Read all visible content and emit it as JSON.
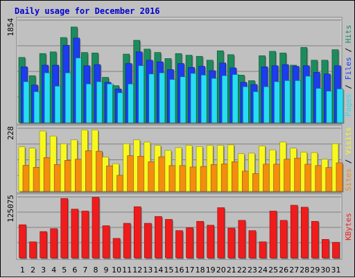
{
  "chart_data": {
    "type": "bar",
    "title": "Daily usage for December 2016",
    "categories": [
      "1",
      "2",
      "3",
      "4",
      "5",
      "6",
      "7",
      "8",
      "9",
      "10",
      "11",
      "12",
      "13",
      "14",
      "15",
      "16",
      "17",
      "18",
      "19",
      "20",
      "21",
      "22",
      "23",
      "24",
      "25",
      "26",
      "27",
      "28",
      "29",
      "30",
      "31"
    ],
    "weekend_days": [
      "3",
      "4",
      "10",
      "11",
      "17",
      "18",
      "24",
      "25",
      "31"
    ],
    "panels": [
      {
        "id": "hits-files-pages",
        "ymax_label": "1854",
        "ylim": [
          0,
          1854
        ],
        "legend": [
          "Pages",
          "Files",
          "Hits"
        ],
        "series": [
          {
            "name": "Hits",
            "color": "#1c8c5c",
            "values": [
              1180,
              850,
              1250,
              1280,
              1540,
              1730,
              1270,
              1260,
              820,
              670,
              1240,
              1490,
              1330,
              1270,
              1160,
              1250,
              1220,
              1200,
              1130,
              1300,
              1230,
              860,
              760,
              1210,
              1290,
              1260,
              1040,
              1360,
              1130,
              1130,
              1320
            ]
          },
          {
            "name": "Files",
            "color": "#1c3cf0",
            "values": [
              1010,
              680,
              1040,
              1040,
              1400,
              1530,
              1030,
              1050,
              730,
              610,
              1070,
              1280,
              1130,
              1100,
              960,
              1070,
              1000,
              1020,
              940,
              1080,
              990,
              730,
              690,
              1010,
              1030,
              1050,
              1020,
              1030,
              910,
              880,
              1030
            ]
          },
          {
            "name": "Pages",
            "color": "#28dcf4",
            "values": [
              740,
              560,
              900,
              660,
              900,
              1170,
              700,
              740,
              700,
              540,
              700,
              1030,
              880,
              900,
              780,
              830,
              890,
              860,
              800,
              850,
              870,
              650,
              560,
              650,
              740,
              760,
              760,
              840,
              620,
              570,
              610
            ]
          }
        ]
      },
      {
        "id": "visits-sites",
        "ymax_label": "228",
        "ylim": [
          0,
          228
        ],
        "legend": [
          "Sites",
          "Visits"
        ],
        "series": [
          {
            "name": "Visits",
            "color": "#f8f820",
            "values": [
              161,
              156,
              218,
              200,
              172,
              186,
              222,
              222,
              124,
              100,
              172,
              186,
              178,
              166,
              148,
              158,
              166,
              162,
              166,
              166,
              168,
              136,
              138,
              164,
              150,
              178,
              156,
              142,
              140,
              116,
              172
            ]
          },
          {
            "name": "Sites",
            "color": "#f48c10",
            "values": [
              94,
              87,
              122,
              97,
              112,
              116,
              147,
              145,
              92,
              58,
              129,
              127,
              107,
              125,
              93,
              93,
              88,
              90,
              97,
              99,
              107,
              73,
              64,
              98,
              98,
              116,
              120,
              98,
              93,
              86,
              103
            ]
          }
        ]
      },
      {
        "id": "kbytes",
        "ymax_label": "125075",
        "ylim": [
          0,
          125075
        ],
        "legend": [
          "KBytes"
        ],
        "series": [
          {
            "name": "KBytes",
            "color": "#f01c1c",
            "values": [
              68000,
              33000,
              54000,
              60000,
              122000,
              100000,
              96000,
              124000,
              66000,
              40000,
              71000,
              105000,
              71000,
              85000,
              79000,
              56000,
              62000,
              75000,
              67000,
              103000,
              61000,
              77000,
              56000,
              33000,
              96000,
              77000,
              108000,
              104000,
              75000,
              38000,
              32000
            ]
          }
        ]
      }
    ]
  }
}
